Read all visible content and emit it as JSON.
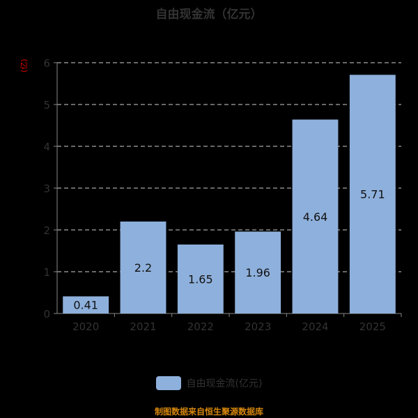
{
  "title": "自由现金流（亿元）",
  "y_unit": "(亿)",
  "legend_label": "自由现金流(亿元)",
  "source": "制图数据来自恒生聚源数据库",
  "colors": {
    "bar": "#8eb0dc",
    "grid": "#cfcfcf",
    "axis": "#888888",
    "tick_text": "#333333",
    "label_text": "#111111"
  },
  "chart_data": {
    "type": "bar",
    "title": "自由现金流（亿元）",
    "xlabel": "",
    "ylabel": "(亿)",
    "categories": [
      "2020",
      "2021",
      "2022",
      "2023",
      "2024",
      "2025"
    ],
    "series": [
      {
        "name": "自由现金流(亿元)",
        "values": [
          0.41,
          2.2,
          1.65,
          1.96,
          4.64,
          5.71
        ]
      }
    ],
    "data_labels": [
      "0.41",
      "2.2",
      "1.65",
      "1.96",
      "4.64",
      "5.71"
    ],
    "ylim": [
      0,
      6
    ],
    "yticks": [
      0,
      1,
      2,
      3,
      4,
      5,
      6
    ],
    "grid": true,
    "grid_style": "dashed",
    "legend_position": "bottom"
  }
}
